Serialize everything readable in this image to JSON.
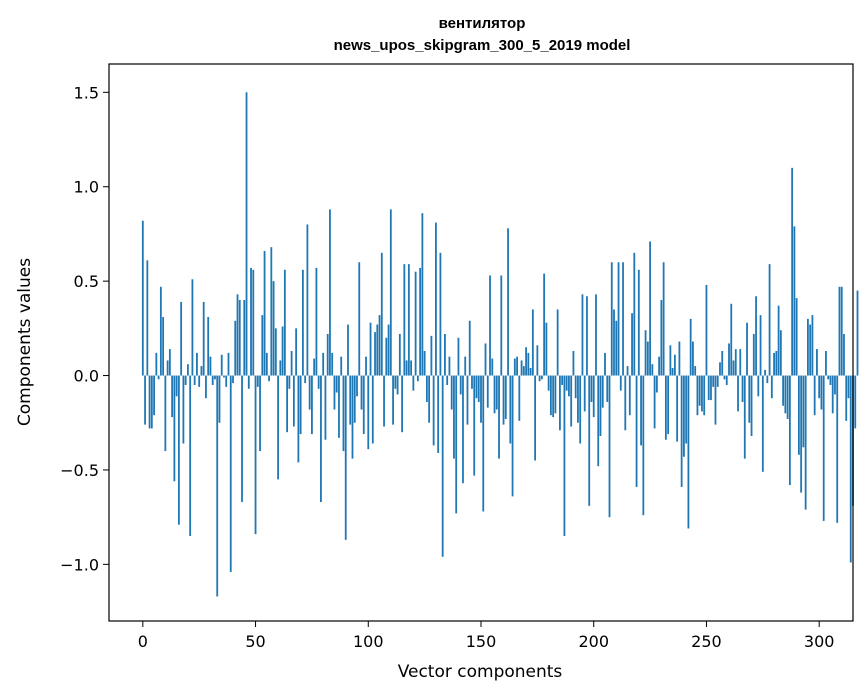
{
  "chart_data": {
    "type": "bar",
    "title_line1": "вентилятор",
    "title_line2": "news_upos_skipgram_300_5_2019 model",
    "xlabel": "Vector components",
    "ylabel": "Components values",
    "xlim": [
      -15,
      315
    ],
    "ylim": [
      -1.3,
      1.65
    ],
    "xticks": [
      0,
      50,
      100,
      150,
      200,
      250,
      300
    ],
    "xtick_labels": [
      "0",
      "50",
      "100",
      "150",
      "200",
      "250",
      "300"
    ],
    "yticks": [
      -1.0,
      -0.5,
      0.0,
      0.5,
      1.0,
      1.5
    ],
    "ytick_labels": [
      "−1.0",
      "−0.5",
      "0.0",
      "0.5",
      "1.0",
      "1.5"
    ],
    "grid": false,
    "bar_color": "#1f77b4",
    "values": [
      0.82,
      -0.26,
      0.61,
      -0.28,
      -0.28,
      -0.21,
      0.12,
      -0.02,
      0.47,
      0.31,
      -0.4,
      0.08,
      0.14,
      -0.22,
      -0.56,
      -0.11,
      -0.79,
      0.39,
      -0.36,
      -0.05,
      0.06,
      -0.85,
      0.51,
      -0.05,
      0.12,
      -0.06,
      0.05,
      0.39,
      -0.12,
      0.31,
      0.1,
      -0.05,
      -0.02,
      -1.17,
      -0.25,
      0.11,
      -0.01,
      -0.06,
      0.12,
      -1.04,
      -0.04,
      0.29,
      0.43,
      0.4,
      -0.67,
      0.4,
      1.5,
      -0.07,
      0.57,
      0.56,
      -0.84,
      -0.06,
      -0.4,
      0.32,
      0.66,
      0.12,
      -0.03,
      0.68,
      0.5,
      0.25,
      -0.55,
      0.08,
      0.26,
      0.56,
      -0.3,
      -0.07,
      0.13,
      -0.27,
      0.25,
      -0.46,
      -0.31,
      0.56,
      -0.04,
      0.8,
      -0.18,
      -0.31,
      0.09,
      0.57,
      -0.07,
      -0.67,
      0.12,
      -0.34,
      0.22,
      0.88,
      0.12,
      -0.18,
      -0.09,
      -0.33,
      0.1,
      -0.4,
      -0.87,
      0.27,
      -0.26,
      -0.44,
      -0.25,
      -0.11,
      0.6,
      -0.18,
      -0.31,
      0.1,
      -0.39,
      0.28,
      -0.36,
      0.23,
      0.27,
      0.32,
      0.65,
      -0.27,
      0.2,
      0.27,
      0.88,
      -0.26,
      -0.07,
      -0.1,
      0.22,
      -0.3,
      0.59,
      0.08,
      0.59,
      0.08,
      -0.08,
      0.55,
      -0.03,
      0.57,
      0.86,
      0.13,
      -0.14,
      -0.25,
      0.21,
      -0.37,
      0.81,
      -0.41,
      0.65,
      -0.96,
      0.22,
      -0.05,
      0.1,
      -0.18,
      -0.44,
      -0.73,
      0.2,
      -0.1,
      -0.57,
      0.1,
      -0.26,
      0.29,
      -0.07,
      -0.53,
      -0.12,
      -0.14,
      -0.25,
      -0.72,
      0.17,
      -0.17,
      0.53,
      0.09,
      -0.2,
      -0.18,
      -0.44,
      0.53,
      -0.26,
      -0.23,
      0.78,
      -0.36,
      -0.64,
      0.09,
      0.1,
      -0.24,
      0.08,
      0.05,
      0.15,
      0.12,
      0.04,
      0.35,
      -0.45,
      0.16,
      -0.03,
      -0.02,
      0.54,
      0.28,
      -0.08,
      -0.21,
      -0.22,
      -0.2,
      0.35,
      -0.29,
      -0.05,
      -0.85,
      -0.08,
      -0.11,
      -0.27,
      0.13,
      -0.12,
      -0.25,
      -0.36,
      0.43,
      -0.19,
      0.42,
      -0.69,
      -0.14,
      -0.22,
      0.43,
      -0.48,
      -0.32,
      -0.17,
      0.12,
      -0.14,
      -0.75,
      0.6,
      0.35,
      0.29,
      0.6,
      -0.08,
      0.6,
      -0.29,
      0.05,
      -0.21,
      0.33,
      0.65,
      -0.59,
      0.56,
      -0.37,
      -0.74,
      0.24,
      0.18,
      0.71,
      0.06,
      -0.28,
      -0.09,
      0.1,
      0.4,
      0.6,
      -0.34,
      -0.31,
      0.16,
      0.04,
      0.11,
      -0.35,
      0.18,
      -0.59,
      -0.43,
      -0.36,
      -0.81,
      0.3,
      0.18,
      0.05,
      -0.21,
      -0.16,
      -0.19,
      -0.21,
      0.48,
      -0.13,
      -0.13,
      -0.06,
      -0.26,
      -0.06,
      0.07,
      0.13,
      -0.02,
      -0.05,
      0.17,
      0.38,
      0.08,
      0.14,
      -0.19,
      0.14,
      -0.14,
      -0.44,
      0.28,
      -0.25,
      -0.32,
      0.22,
      0.42,
      -0.11,
      0.32,
      -0.51,
      0.03,
      -0.04,
      0.59,
      -0.12,
      0.12,
      0.13,
      0.37,
      0.24,
      -0.16,
      -0.2,
      -0.23,
      -0.58,
      1.1,
      0.79,
      0.41,
      -0.42,
      -0.62,
      -0.38,
      -0.71,
      0.3,
      0.27,
      0.32,
      -0.21,
      0.14,
      -0.12,
      -0.18,
      -0.77,
      0.13,
      -0.02,
      -0.05,
      -0.2,
      -0.1,
      -0.78,
      0.47,
      0.47,
      0.22,
      -0.24,
      -0.12,
      -0.99,
      -0.69,
      -0.28,
      0.45
    ]
  }
}
